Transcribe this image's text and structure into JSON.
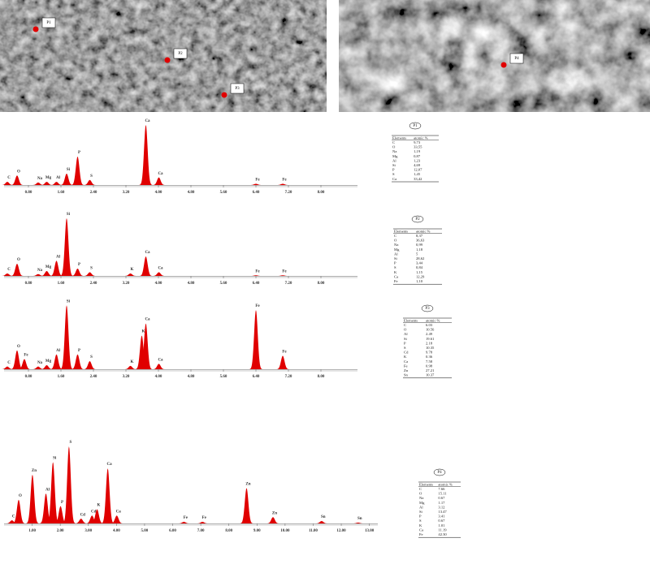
{
  "images": [
    {
      "markers": [
        "P1",
        "P2",
        "P3"
      ]
    },
    {
      "markers": [
        "P4"
      ]
    }
  ],
  "chart_data": [
    {
      "type": "spectrum",
      "color": "#e00000",
      "xlim": [
        0.2,
        8.9
      ],
      "ylim": [
        0,
        100
      ],
      "xticks": [
        {
          "value": 0.8,
          "label": "0.80"
        },
        {
          "value": 1.6,
          "label": "1.60"
        },
        {
          "value": 2.4,
          "label": "2.40"
        },
        {
          "value": 3.2,
          "label": "3.20"
        },
        {
          "value": 4.0,
          "label": "4.00"
        },
        {
          "value": 4.8,
          "label": "4.80"
        },
        {
          "value": 5.6,
          "label": "5.60"
        },
        {
          "value": 6.4,
          "label": "6.40"
        },
        {
          "value": 7.2,
          "label": "7.20"
        },
        {
          "value": 8.0,
          "label": "8.00"
        }
      ],
      "x": [
        0.28,
        0.52,
        1.04,
        1.25,
        1.49,
        1.74,
        2.01,
        2.31,
        3.69,
        4.01,
        6.4,
        7.06
      ],
      "values": [
        5,
        15,
        4,
        5,
        5,
        18,
        45,
        8,
        95,
        12,
        2,
        2
      ],
      "labels": [
        "C",
        "O",
        "Na",
        "Mg",
        "Al",
        "Si",
        "P",
        "S",
        "Ca",
        "Ca",
        "Fe",
        "Fe"
      ]
    },
    {
      "type": "spectrum",
      "color": "#e00000",
      "xlim": [
        0.2,
        8.9
      ],
      "ylim": [
        0,
        100
      ],
      "xticks": [
        {
          "value": 0.8,
          "label": "0.80"
        },
        {
          "value": 1.6,
          "label": "1.60"
        },
        {
          "value": 2.4,
          "label": "2.40"
        },
        {
          "value": 3.2,
          "label": "3.20"
        },
        {
          "value": 4.0,
          "label": "4.00"
        },
        {
          "value": 4.8,
          "label": "4.80"
        },
        {
          "value": 5.6,
          "label": "5.60"
        },
        {
          "value": 6.4,
          "label": "6.40"
        },
        {
          "value": 7.2,
          "label": "7.20"
        },
        {
          "value": 8.0,
          "label": "8.00"
        }
      ],
      "x": [
        0.28,
        0.52,
        1.04,
        1.25,
        1.49,
        1.74,
        2.01,
        2.31,
        3.31,
        3.69,
        4.01,
        6.4,
        7.06
      ],
      "values": [
        4,
        20,
        3,
        8,
        25,
        95,
        12,
        6,
        4,
        32,
        6,
        1,
        1
      ],
      "labels": [
        "C",
        "O",
        "Na",
        "Mg",
        "Al",
        "Si",
        "P",
        "S",
        "K",
        "Ca",
        "Ca",
        "Fe",
        "Fe"
      ]
    },
    {
      "type": "spectrum",
      "color": "#e00000",
      "xlim": [
        0.2,
        8.9
      ],
      "ylim": [
        0,
        100
      ],
      "xticks": [
        {
          "value": 0.8,
          "label": "0.80"
        },
        {
          "value": 1.6,
          "label": "1.60"
        },
        {
          "value": 2.4,
          "label": "2.40"
        },
        {
          "value": 3.2,
          "label": "3.20"
        },
        {
          "value": 4.0,
          "label": "4.00"
        },
        {
          "value": 4.8,
          "label": "4.80"
        },
        {
          "value": 5.6,
          "label": "5.60"
        },
        {
          "value": 6.4,
          "label": "6.40"
        },
        {
          "value": 7.2,
          "label": "7.20"
        },
        {
          "value": 8.0,
          "label": "8.00"
        }
      ],
      "x": [
        0.28,
        0.52,
        0.7,
        1.04,
        1.25,
        1.49,
        1.74,
        2.01,
        2.31,
        3.31,
        3.59,
        3.69,
        4.01,
        6.4,
        7.06
      ],
      "values": [
        4,
        28,
        15,
        4,
        6,
        22,
        95,
        22,
        12,
        5,
        50,
        68,
        8,
        88,
        20
      ],
      "labels": [
        "C",
        "O",
        "Fe",
        "Na",
        "Mg",
        "Al",
        "Si",
        "P",
        "S",
        "K",
        "K",
        "Ca",
        "Ca",
        "Fe",
        "Fe"
      ]
    },
    {
      "type": "spectrum",
      "color": "#e00000",
      "xlim": [
        0,
        13.3
      ],
      "ylim": [
        0,
        100
      ],
      "xticks": [
        {
          "value": 1,
          "label": "1.00"
        },
        {
          "value": 2,
          "label": "2.00"
        },
        {
          "value": 3,
          "label": "3.00"
        },
        {
          "value": 4,
          "label": "4.00"
        },
        {
          "value": 5,
          "label": "5.00"
        },
        {
          "value": 6,
          "label": "6.00"
        },
        {
          "value": 7,
          "label": "7.00"
        },
        {
          "value": 8,
          "label": "8.00"
        },
        {
          "value": 9,
          "label": "9.00"
        },
        {
          "value": 10,
          "label": "10.00"
        },
        {
          "value": 11,
          "label": "11.00"
        },
        {
          "value": 12,
          "label": "12.00"
        },
        {
          "value": 13,
          "label": "13.00"
        }
      ],
      "x": [
        0.28,
        0.52,
        1.01,
        1.49,
        1.74,
        2.01,
        2.31,
        2.74,
        3.13,
        3.31,
        3.69,
        4.01,
        6.4,
        7.06,
        8.63,
        9.57,
        11.3,
        12.6
      ],
      "values": [
        4,
        30,
        62,
        38,
        78,
        22,
        98,
        6,
        10,
        18,
        70,
        10,
        2,
        2,
        45,
        8,
        3,
        1
      ],
      "labels": [
        "C",
        "O",
        "Zn",
        "Al",
        "Si",
        "P",
        "S",
        "Cd",
        "Cd",
        "K",
        "Ca",
        "Ca",
        "Fe",
        "Fe",
        "Zn",
        "Zn",
        "Sn",
        "Sn"
      ]
    }
  ],
  "tables": [
    {
      "title": "P1",
      "header": [
        "Elements",
        "atomic %"
      ],
      "rows": [
        [
          "C",
          "9,73"
        ],
        [
          "O",
          "33,55"
        ],
        [
          "Na",
          "1,19"
        ],
        [
          "Mg",
          "0,87"
        ],
        [
          "Al",
          "1,23"
        ],
        [
          "Si",
          "4,69"
        ],
        [
          "P",
          "12,07"
        ],
        [
          "S",
          "1,45"
        ],
        [
          "Ca",
          "33,42"
        ]
      ]
    },
    {
      "title": "P2",
      "header": [
        "Elements",
        "atomic %"
      ],
      "rows": [
        [
          "C",
          "8,37"
        ],
        [
          "O",
          "36,63"
        ],
        [
          "Na",
          "0,99"
        ],
        [
          "Mg",
          "1,18"
        ],
        [
          "Al",
          "5"
        ],
        [
          "Si",
          "28,62"
        ],
        [
          "P",
          "3,44"
        ],
        [
          "S",
          "0,84"
        ],
        [
          "K",
          "1,15"
        ],
        [
          "Ca",
          "12,29"
        ],
        [
          "Fe",
          "1,10"
        ]
      ]
    },
    {
      "title": "P3",
      "header": [
        "Elements",
        "atomic %"
      ],
      "rows": [
        [
          "C",
          "6.03"
        ],
        [
          "O",
          "10.56"
        ],
        [
          "Al",
          "2.49"
        ],
        [
          "Si",
          "19.61"
        ],
        [
          "P",
          "2.18"
        ],
        [
          "S",
          "10.35"
        ],
        [
          "Cd",
          "9.78"
        ],
        [
          "K",
          "0.36"
        ],
        [
          "Ca",
          "7.58"
        ],
        [
          "Fe",
          "0.98"
        ],
        [
          "Zn",
          "27.21"
        ],
        [
          "Sn",
          "10.37"
        ]
      ]
    },
    {
      "title": "P4",
      "header": [
        "Elements",
        "atomic %"
      ],
      "rows": [
        [
          "C",
          "7.66"
        ],
        [
          "O",
          "15.11"
        ],
        [
          "Na",
          "0.67"
        ],
        [
          "Mg",
          "1.17"
        ],
        [
          "Al",
          "3.12"
        ],
        [
          "Si",
          "13.47"
        ],
        [
          "P",
          "3.41"
        ],
        [
          "S",
          "0.67"
        ],
        [
          "K",
          "1.01"
        ],
        [
          "Ca",
          "11.19"
        ],
        [
          "Fe",
          "42.30"
        ]
      ]
    }
  ]
}
